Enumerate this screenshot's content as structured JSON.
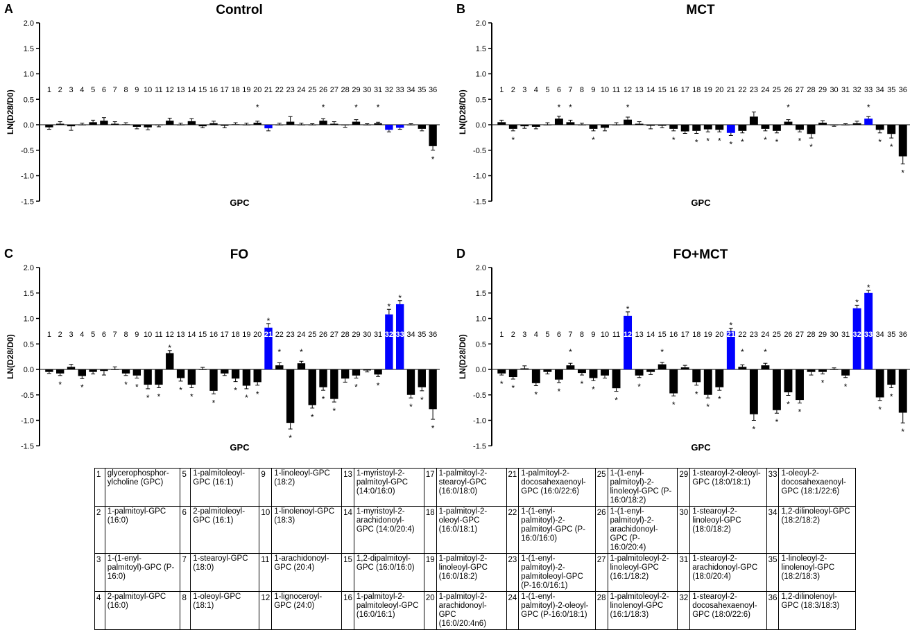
{
  "chart_data": [
    {
      "type": "bar",
      "panel_letter": "A",
      "title": "Control",
      "xlabel": "GPC",
      "ylabel": "LN(D28/D0)",
      "ylim": [
        -1.5,
        2.0
      ],
      "yticks": [
        "2.0",
        "1.5",
        "1.0",
        "0.5",
        "0.0",
        "-0.5",
        "-1.0",
        "-1.5"
      ],
      "categories": [
        "1",
        "2",
        "3",
        "4",
        "5",
        "6",
        "7",
        "8",
        "9",
        "10",
        "11",
        "12",
        "13",
        "14",
        "15",
        "16",
        "17",
        "18",
        "19",
        "20",
        "21",
        "22",
        "23",
        "24",
        "25",
        "26",
        "27",
        "28",
        "29",
        "30",
        "31",
        "32",
        "33",
        "34",
        "35",
        "36"
      ],
      "values": [
        -0.05,
        0.02,
        -0.03,
        0.0,
        0.05,
        0.08,
        0.02,
        0.01,
        -0.04,
        -0.05,
        -0.01,
        0.08,
        0.0,
        0.07,
        -0.03,
        0.03,
        -0.02,
        0.01,
        0.0,
        0.04,
        -0.07,
        0.0,
        0.06,
        0.0,
        0.0,
        0.08,
        0.02,
        -0.01,
        0.06,
        0.0,
        0.03,
        -0.1,
        -0.06,
        0.0,
        -0.08,
        -0.42
      ],
      "errors": [
        0.04,
        0.04,
        0.08,
        0.03,
        0.04,
        0.06,
        0.04,
        0.03,
        0.04,
        0.05,
        0.03,
        0.05,
        0.03,
        0.05,
        0.03,
        0.04,
        0.04,
        0.03,
        0.03,
        0.03,
        0.05,
        0.03,
        0.1,
        0.03,
        0.02,
        0.04,
        0.04,
        0.04,
        0.04,
        0.02,
        0.02,
        0.04,
        0.03,
        0.02,
        0.04,
        0.08
      ],
      "highlighted": [
        21,
        32,
        33
      ],
      "significant": [
        20,
        26,
        29,
        31,
        36
      ],
      "colors": {
        "default": "#000000",
        "highlight": "#0000ff"
      }
    },
    {
      "type": "bar",
      "panel_letter": "B",
      "title": "MCT",
      "xlabel": "GPC",
      "ylabel": "LN(D28/D0)",
      "ylim": [
        -1.5,
        2.0
      ],
      "yticks": [
        "2.0",
        "1.5",
        "1.0",
        "0.5",
        "0.0",
        "-0.5",
        "-1.0",
        "-1.5"
      ],
      "categories": [
        "1",
        "2",
        "3",
        "4",
        "5",
        "6",
        "7",
        "8",
        "9",
        "10",
        "11",
        "12",
        "13",
        "14",
        "15",
        "16",
        "17",
        "18",
        "19",
        "20",
        "21",
        "22",
        "23",
        "24",
        "25",
        "26",
        "27",
        "28",
        "29",
        "30",
        "31",
        "32",
        "33",
        "34",
        "35",
        "36"
      ],
      "values": [
        0.05,
        -0.08,
        -0.03,
        -0.04,
        0.0,
        0.12,
        0.05,
        0.0,
        -0.08,
        -0.06,
        0.0,
        0.1,
        0.02,
        -0.02,
        -0.02,
        -0.08,
        -0.13,
        -0.12,
        -0.09,
        -0.1,
        -0.16,
        -0.12,
        0.16,
        -0.08,
        -0.12,
        0.06,
        -0.1,
        -0.18,
        0.04,
        -0.01,
        0.0,
        0.03,
        0.12,
        -0.1,
        -0.18,
        -0.62
      ],
      "errors": [
        0.04,
        0.04,
        0.04,
        0.04,
        0.04,
        0.05,
        0.04,
        0.03,
        0.04,
        0.06,
        0.04,
        0.05,
        0.04,
        0.06,
        0.04,
        0.04,
        0.04,
        0.05,
        0.05,
        0.04,
        0.05,
        0.04,
        0.09,
        0.04,
        0.04,
        0.04,
        0.04,
        0.08,
        0.04,
        0.02,
        0.02,
        0.04,
        0.04,
        0.06,
        0.08,
        0.15
      ],
      "highlighted": [
        21,
        33
      ],
      "significant": [
        2,
        6,
        7,
        9,
        12,
        16,
        18,
        19,
        20,
        21,
        22,
        24,
        25,
        26,
        27,
        28,
        33,
        34,
        35,
        36
      ],
      "colors": {
        "default": "#000000",
        "highlight": "#0000ff"
      }
    },
    {
      "type": "bar",
      "panel_letter": "C",
      "title": "FO",
      "xlabel": "GPC",
      "ylabel": "LN(D28/D0)",
      "ylim": [
        -1.5,
        2.0
      ],
      "yticks": [
        "2.0",
        "1.5",
        "1.0",
        "0.5",
        "0.0",
        "-0.5",
        "-1.0",
        "-1.5"
      ],
      "categories": [
        "1",
        "2",
        "3",
        "4",
        "5",
        "6",
        "7",
        "8",
        "9",
        "10",
        "11",
        "12",
        "13",
        "14",
        "15",
        "16",
        "17",
        "18",
        "19",
        "20",
        "21",
        "22",
        "23",
        "24",
        "25",
        "26",
        "27",
        "28",
        "29",
        "30",
        "31",
        "32",
        "33",
        "34",
        "35",
        "36"
      ],
      "values": [
        -0.05,
        -0.08,
        0.05,
        -0.13,
        -0.05,
        -0.03,
        0.0,
        -0.08,
        -0.12,
        -0.3,
        -0.3,
        0.32,
        -0.17,
        -0.3,
        0.0,
        -0.42,
        -0.08,
        -0.18,
        -0.32,
        -0.25,
        0.82,
        0.08,
        -1.05,
        0.12,
        -0.7,
        -0.35,
        -0.58,
        -0.18,
        -0.12,
        -0.02,
        -0.1,
        1.08,
        1.28,
        -0.5,
        -0.35,
        -0.78
      ],
      "errors": [
        0.03,
        0.04,
        0.05,
        0.05,
        0.04,
        0.08,
        0.05,
        0.04,
        0.05,
        0.08,
        0.06,
        0.05,
        0.06,
        0.06,
        0.04,
        0.06,
        0.04,
        0.06,
        0.06,
        0.06,
        0.08,
        0.05,
        0.12,
        0.04,
        0.06,
        0.06,
        0.06,
        0.07,
        0.05,
        0.03,
        0.04,
        0.1,
        0.07,
        0.06,
        0.07,
        0.2
      ],
      "highlighted": [
        21,
        32,
        33
      ],
      "significant": [
        2,
        4,
        8,
        9,
        10,
        11,
        12,
        13,
        14,
        16,
        18,
        19,
        20,
        21,
        22,
        23,
        24,
        25,
        26,
        27,
        29,
        31,
        32,
        33,
        34,
        35,
        36
      ],
      "colors": {
        "default": "#000000",
        "highlight": "#0000ff"
      }
    },
    {
      "type": "bar",
      "panel_letter": "D",
      "title": "FO+MCT",
      "xlabel": "GPC",
      "ylabel": "LN(D28/D0)",
      "ylim": [
        -1.5,
        2.0
      ],
      "yticks": [
        "2.0",
        "1.5",
        "1.0",
        "0.5",
        "0.0",
        "-0.5",
        "-1.0",
        "-1.5"
      ],
      "categories": [
        "1",
        "2",
        "3",
        "4",
        "5",
        "6",
        "7",
        "8",
        "9",
        "10",
        "11",
        "12",
        "13",
        "14",
        "15",
        "16",
        "17",
        "18",
        "19",
        "20",
        "21",
        "22",
        "23",
        "24",
        "25",
        "26",
        "27",
        "28",
        "29",
        "30",
        "31",
        "32",
        "33",
        "34",
        "35",
        "36"
      ],
      "values": [
        -0.08,
        -0.15,
        0.02,
        -0.27,
        -0.05,
        -0.2,
        0.08,
        -0.07,
        -0.17,
        -0.12,
        -0.37,
        1.05,
        -0.12,
        -0.05,
        0.1,
        -0.47,
        0.04,
        -0.25,
        -0.5,
        -0.35,
        0.75,
        0.05,
        -0.88,
        0.08,
        -0.8,
        -0.45,
        -0.6,
        -0.05,
        -0.05,
        0.0,
        -0.12,
        1.2,
        1.5,
        -0.55,
        -0.3,
        -0.85
      ],
      "errors": [
        0.03,
        0.04,
        0.05,
        0.05,
        0.04,
        0.06,
        0.04,
        0.04,
        0.05,
        0.05,
        0.06,
        0.08,
        0.04,
        0.05,
        0.04,
        0.05,
        0.04,
        0.06,
        0.06,
        0.06,
        0.06,
        0.04,
        0.12,
        0.04,
        0.06,
        0.06,
        0.06,
        0.06,
        0.04,
        0.03,
        0.04,
        0.06,
        0.05,
        0.06,
        0.06,
        0.2
      ],
      "highlighted": [
        12,
        21,
        32,
        33
      ],
      "significant": [
        1,
        2,
        4,
        6,
        7,
        8,
        9,
        11,
        12,
        13,
        15,
        16,
        18,
        19,
        20,
        21,
        22,
        23,
        24,
        25,
        26,
        27,
        29,
        31,
        32,
        33,
        34,
        35,
        36
      ],
      "colors": {
        "default": "#000000",
        "highlight": "#0000ff"
      }
    }
  ],
  "legend": [
    [
      {
        "n": "1",
        "t": "glycerophosphor-ylcholine (GPC)"
      },
      {
        "n": "5",
        "t": "1-palmitoleoyl-GPC (16:1)"
      },
      {
        "n": "9",
        "t": "1-linoleoyl-GPC (18:2)"
      },
      {
        "n": "13",
        "t": "1-myristoyl-2-palmitoyl-GPC (14:0/16:0)"
      },
      {
        "n": "17",
        "t": "1-palmitoyl-2-stearoyl-GPC (16:0/18:0)"
      },
      {
        "n": "21",
        "t": "1-palmitoyl-2-docosahexaenoyl-GPC (16:0/22:6)"
      },
      {
        "n": "25",
        "t": "1-(1-enyl-palmitoyl)-2-linoleoyl-GPC (P-16:0/18:2)"
      },
      {
        "n": "29",
        "t": "1-stearoyl-2-oleoyl-GPC (18:0/18:1)"
      },
      {
        "n": "33",
        "t": "1-oleoyl-2-docosahexaenoyl-GPC (18:1/22:6)"
      }
    ],
    [
      {
        "n": "2",
        "t": "1-palmitoyl-GPC (16:0)"
      },
      {
        "n": "6",
        "t": "2-palmitoleoyl-GPC (16:1)"
      },
      {
        "n": "10",
        "t": "1-linolenoyl-GPC (18:3)"
      },
      {
        "n": "14",
        "t": "1-myristoyl-2-arachidonoyl-GPC (14:0/20:4)"
      },
      {
        "n": "18",
        "t": "1-palmitoyl-2-oleoyl-GPC (16:0/18:1)"
      },
      {
        "n": "22",
        "t": "1-(1-enyl-palmitoyl)-2-palmitoyl-GPC (P-16:0/16:0)"
      },
      {
        "n": "26",
        "t": "1-(1-enyl-palmitoyl)-2-arachidonoyl-GPC (P-16:0/20:4)"
      },
      {
        "n": "30",
        "t": "1-stearoyl-2-linoleoyl-GPC (18:0/18:2)"
      },
      {
        "n": "34",
        "t": "1,2-dilinoleoyl-GPC (18:2/18:2)"
      }
    ],
    [
      {
        "n": "3",
        "t": "1-(1-enyl-palmitoyl)-GPC (P-16:0)"
      },
      {
        "n": "7",
        "t": "1-stearoyl-GPC (18:0)"
      },
      {
        "n": "11",
        "t": "1-arachidonoyl-GPC (20:4)"
      },
      {
        "n": "15",
        "t": "1,2-dipalmitoyl-GPC (16:0/16:0)"
      },
      {
        "n": "19",
        "t": "1-palmitoyl-2-linoleoyl-GPC (16:0/18:2)"
      },
      {
        "n": "23",
        "t": "1-(1-enyl-palmitoyl)-2-palmitoleoyl-GPC (P-16:0/16:1)"
      },
      {
        "n": "27",
        "t": "1-palmitoleoyl-2-linoleoyl-GPC (16:1/18:2)"
      },
      {
        "n": "31",
        "t": "1-stearoyl-2-arachidonoyl-GPC (18:0/20:4)"
      },
      {
        "n": "35",
        "t": "1-linoleoyl-2-linolenoyl-GPC (18:2/18:3)"
      }
    ],
    [
      {
        "n": "4",
        "t": "2-palmitoyl-GPC (16:0)"
      },
      {
        "n": "8",
        "t": "1-oleoyl-GPC (18:1)"
      },
      {
        "n": "12",
        "t": "1-lignoceroyl-GPC (24:0)"
      },
      {
        "n": "16",
        "t": "1-palmitoyl-2-palmitoleoyl-GPC (16:0/16:1)"
      },
      {
        "n": "20",
        "t": "1-palmitoyl-2-arachidonoyl-GPC (16:0/20:4n6)"
      },
      {
        "n": "24",
        "t": "1-(1-enyl-palmitoyl)-2-oleoyl-GPC (P-16:0/18:1)"
      },
      {
        "n": "28",
        "t": "1-palmitoleoyl-2-linolenoyl-GPC (16:1/18:3)"
      },
      {
        "n": "32",
        "t": "1-stearoyl-2-docosahexaenoyl-GPC (18:0/22:6)"
      },
      {
        "n": "36",
        "t": "1,2-dilinolenoyl-GPC (18:3/18:3)"
      }
    ]
  ]
}
